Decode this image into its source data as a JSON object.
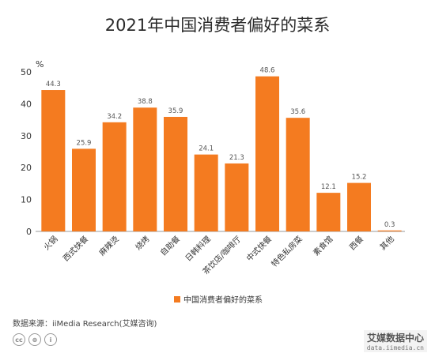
{
  "chart_data": {
    "type": "bar",
    "title": "2021年中国消费者偏好的菜系",
    "ylabel": "%",
    "xlabel": "",
    "ylim": [
      0,
      50
    ],
    "yticks": [
      0,
      10,
      20,
      30,
      40,
      50
    ],
    "categories": [
      "火锅",
      "西式快餐",
      "麻辣烫",
      "烧烤",
      "自助餐",
      "日韩料理",
      "茶饮店/咖啡厅",
      "中式快餐",
      "特色私房菜",
      "素食馆",
      "西餐",
      "其他"
    ],
    "series": [
      {
        "name": "中国消费者偏好的菜系",
        "values": [
          44.3,
          25.9,
          34.2,
          38.8,
          35.9,
          24.1,
          21.3,
          48.6,
          35.6,
          12.1,
          15.2,
          0.3
        ],
        "value_labels": [
          "44.3",
          "25.9",
          "34.2",
          "38.8",
          "35.9",
          "24.1",
          "21.3",
          "48.6",
          "35.6",
          "12.1",
          "15.2",
          "0.3"
        ]
      }
    ],
    "bar_color": "#f47b20",
    "grid": false,
    "legend_position": "bottom"
  },
  "source": "数据来源：iiMedia Research(艾媒咨询)",
  "brand": {
    "name": "艾媒数据中心",
    "url": "data.iimedia.cn"
  },
  "license_icons": [
    "cc-icon",
    "by-icon",
    "info-icon"
  ]
}
